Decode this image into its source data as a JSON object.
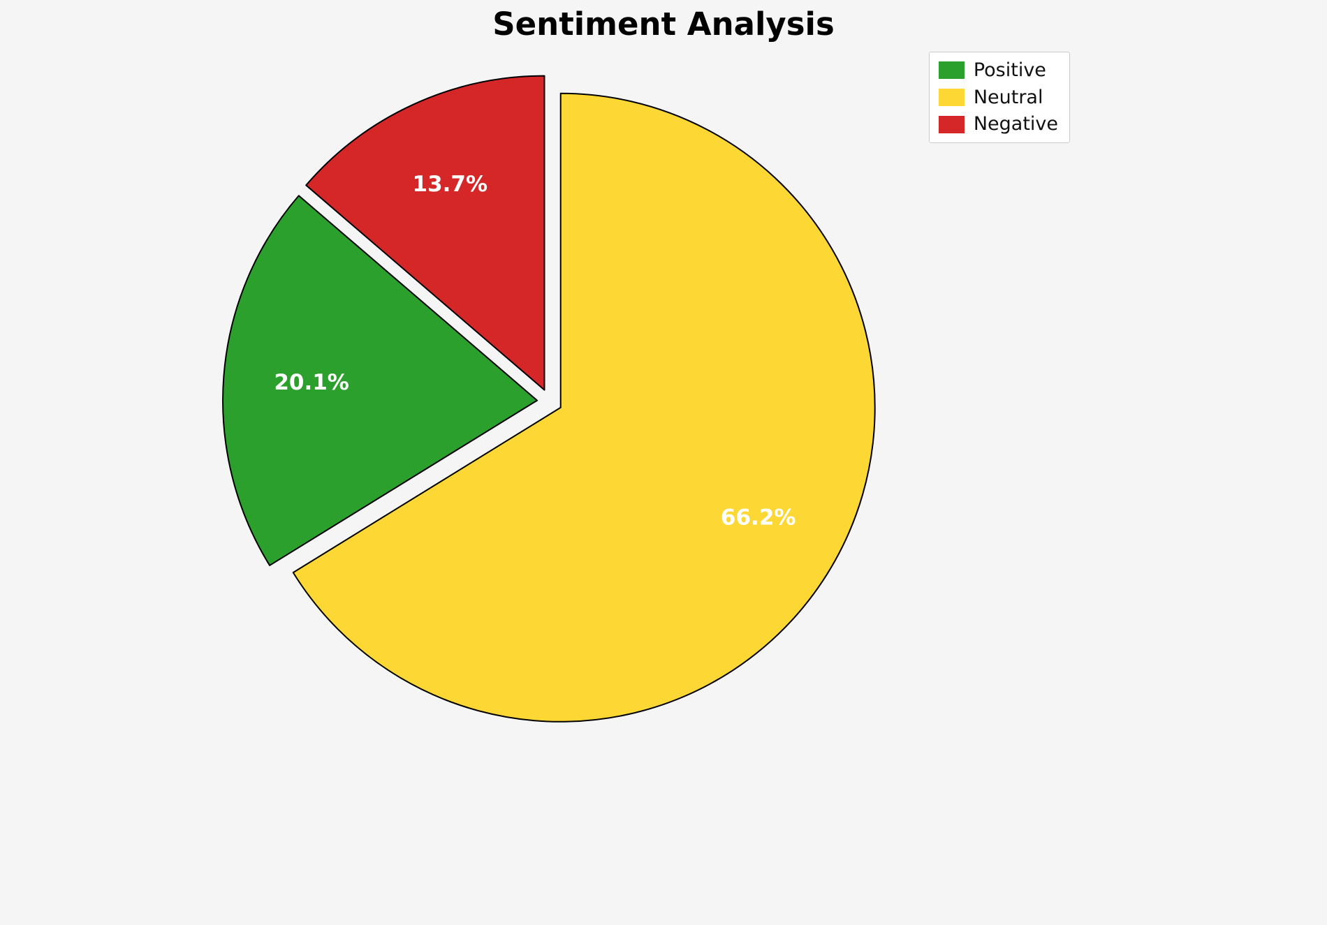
{
  "chart_data": {
    "type": "pie",
    "title": "Sentiment Analysis",
    "slices": [
      {
        "label": "Positive",
        "value": 20.1,
        "pct_label": "20.1%",
        "color": "#2ca02c"
      },
      {
        "label": "Neutral",
        "value": 66.2,
        "pct_label": "66.2%",
        "color": "#fdd835"
      },
      {
        "label": "Negative",
        "value": 13.7,
        "pct_label": "13.7%",
        "color": "#d62728"
      }
    ],
    "start_angle": 90,
    "counterclock": true,
    "draw_order": [
      "Negative",
      "Positive",
      "Neutral"
    ],
    "explode": 0.04,
    "pctdistance": 0.72,
    "edge_color": "#000000",
    "label_text_color": "#ffffff",
    "legend_position": "upper right",
    "background_color": "#f5f5f5"
  }
}
